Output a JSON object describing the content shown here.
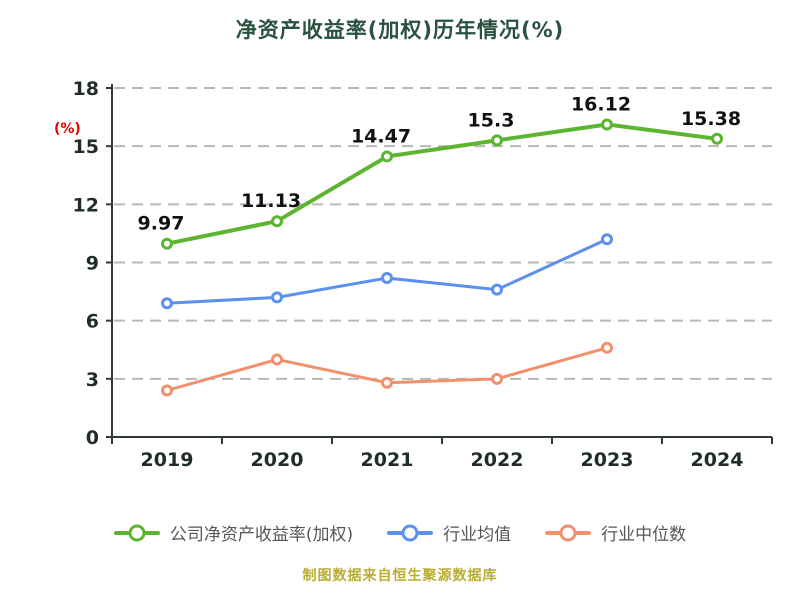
{
  "chart_data": {
    "type": "line",
    "title": "净资产收益率(加权)历年情况(%)",
    "ylabel": "(%)",
    "caption": "制图数据来自恒生聚源数据库",
    "categories": [
      "2019",
      "2020",
      "2021",
      "2022",
      "2023",
      "2024"
    ],
    "ylim": [
      0,
      18
    ],
    "yticks": [
      0,
      3,
      6,
      9,
      12,
      15,
      18
    ],
    "grid": "dashed-horizontal",
    "legend_position": "bottom",
    "series": [
      {
        "name": "公司净资产收益率(加权)",
        "color": "#5cb531",
        "line_width": 4,
        "values": [
          9.97,
          11.13,
          14.47,
          15.3,
          16.12,
          15.38
        ],
        "point_labels": [
          "9.97",
          "11.13",
          "14.47",
          "15.3",
          "16.12",
          "15.38"
        ]
      },
      {
        "name": "行业均值",
        "color": "#5b8ff0",
        "line_width": 3,
        "values": [
          6.9,
          7.2,
          8.2,
          7.6,
          10.2,
          null
        ]
      },
      {
        "name": "行业中位数",
        "color": "#f2906d",
        "line_width": 3,
        "values": [
          2.4,
          4.0,
          2.8,
          3.0,
          4.6,
          null
        ]
      }
    ],
    "colors": {
      "title": "#2a5240",
      "caption": "#b9ad33",
      "ylabel": "#e60000",
      "axis": "#2f3a33",
      "grid": "#b8b8b8",
      "tick_label": "#1f2d26",
      "data_label": "#111111",
      "legend_text": "#565656"
    }
  }
}
